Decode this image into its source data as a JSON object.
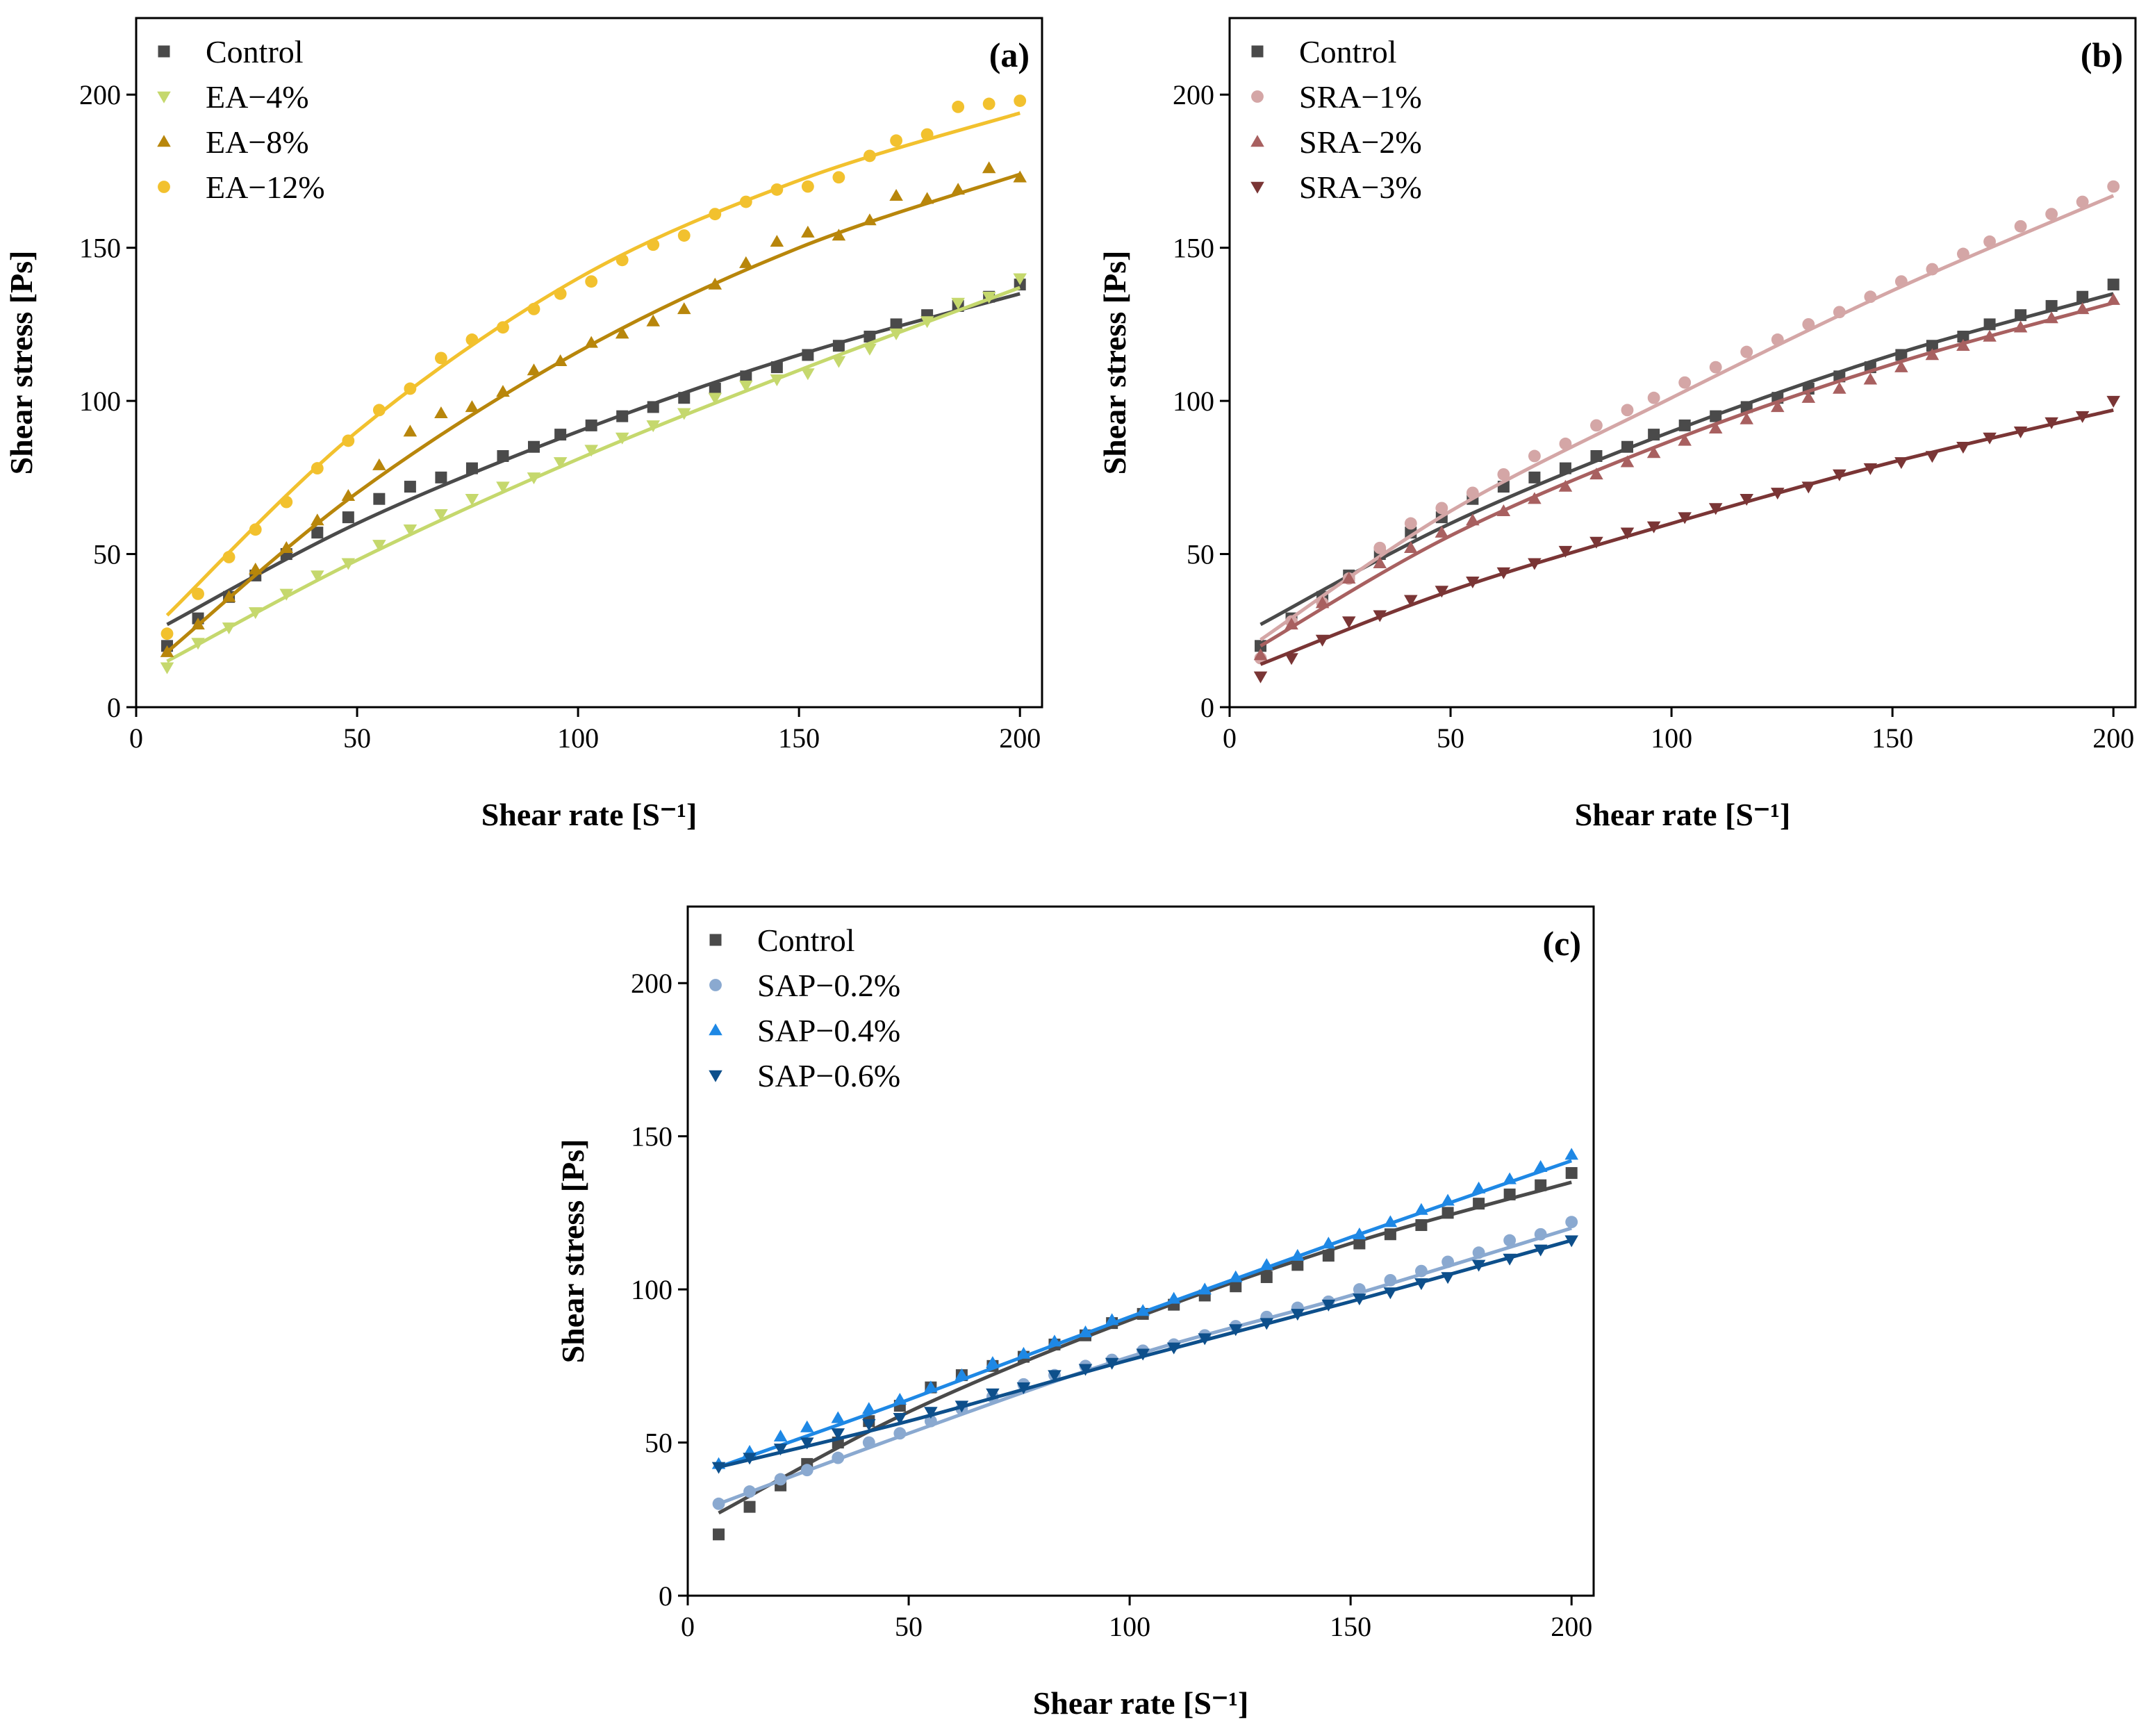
{
  "chart_data": [
    {
      "type": "scatter",
      "panel_label": "(a)",
      "xlabel": "Shear rate [S⁻¹]",
      "ylabel": "Shear stress [Ps]",
      "xlim": [
        0,
        205
      ],
      "ylim": [
        0,
        225
      ],
      "xticks": [
        "0",
        "50",
        "100",
        "150",
        "200"
      ],
      "yticks": [
        "0",
        "50",
        "100",
        "150",
        "200"
      ],
      "legend_position": "top-left",
      "x": [
        7,
        14,
        21,
        27,
        34,
        41,
        48,
        55,
        62,
        69,
        76,
        83,
        90,
        96,
        103,
        110,
        117,
        124,
        131,
        138,
        145,
        152,
        159,
        166,
        172,
        179,
        186,
        193,
        200
      ],
      "series": [
        {
          "name": "Control",
          "marker": "square",
          "color": "#4a4a4a",
          "values": [
            20,
            29,
            36,
            43,
            50,
            57,
            62,
            68,
            72,
            75,
            78,
            82,
            85,
            89,
            92,
            95,
            98,
            101,
            104,
            108,
            111,
            115,
            118,
            121,
            125,
            128,
            131,
            134,
            138
          ],
          "fit": [
            [
              7,
              27
            ],
            [
              50,
              60
            ],
            [
              100,
              90
            ],
            [
              150,
              115
            ],
            [
              200,
              135
            ]
          ]
        },
        {
          "name": "EA−4%",
          "marker": "triangle-down",
          "color": "#c5d86d",
          "values": [
            13,
            21,
            26,
            31,
            37,
            43,
            47,
            53,
            58,
            63,
            68,
            72,
            75,
            80,
            84,
            88,
            92,
            96,
            101,
            105,
            107,
            109,
            113,
            117,
            122,
            126,
            132,
            134,
            140
          ],
          "fit": [
            [
              7,
              15
            ],
            [
              50,
              48
            ],
            [
              100,
              81
            ],
            [
              150,
              110
            ],
            [
              200,
              137
            ]
          ]
        },
        {
          "name": "EA−8%",
          "marker": "triangle-up",
          "color": "#b8860b",
          "values": [
            18,
            27,
            36,
            45,
            52,
            61,
            69,
            79,
            90,
            96,
            98,
            103,
            110,
            113,
            119,
            122,
            126,
            130,
            138,
            145,
            152,
            155,
            154,
            159,
            167,
            166,
            169,
            176,
            173
          ],
          "fit": [
            [
              7,
              18
            ],
            [
              50,
              70
            ],
            [
              100,
              116
            ],
            [
              150,
              150
            ],
            [
              200,
              174
            ]
          ]
        },
        {
          "name": "EA−12%",
          "marker": "circle",
          "color": "#f2c12e",
          "values": [
            24,
            37,
            49,
            58,
            67,
            78,
            87,
            97,
            104,
            114,
            120,
            124,
            130,
            135,
            139,
            146,
            151,
            154,
            161,
            165,
            169,
            170,
            173,
            180,
            185,
            187,
            196,
            197,
            198
          ],
          "fit": [
            [
              7,
              30
            ],
            [
              50,
              90
            ],
            [
              100,
              140
            ],
            [
              150,
              172
            ],
            [
              200,
              194
            ]
          ]
        }
      ]
    },
    {
      "type": "scatter",
      "panel_label": "(b)",
      "xlabel": "Shear rate [S⁻¹]",
      "ylabel": "Shear stress [Ps]",
      "xlim": [
        0,
        205
      ],
      "ylim": [
        0,
        225
      ],
      "xticks": [
        "0",
        "50",
        "100",
        "150",
        "200"
      ],
      "yticks": [
        "0",
        "50",
        "100",
        "150",
        "200"
      ],
      "legend_position": "top-left",
      "x": [
        7,
        14,
        21,
        27,
        34,
        41,
        48,
        55,
        62,
        69,
        76,
        83,
        90,
        96,
        103,
        110,
        117,
        124,
        131,
        138,
        145,
        152,
        159,
        166,
        172,
        179,
        186,
        193,
        200
      ],
      "series": [
        {
          "name": "Control",
          "marker": "square",
          "color": "#4a4a4a",
          "values": [
            20,
            29,
            36,
            43,
            50,
            57,
            62,
            68,
            72,
            75,
            78,
            82,
            85,
            89,
            92,
            95,
            98,
            101,
            104,
            108,
            111,
            115,
            118,
            121,
            125,
            128,
            131,
            134,
            138
          ],
          "fit": [
            [
              7,
              27
            ],
            [
              50,
              60
            ],
            [
              100,
              90
            ],
            [
              150,
              115
            ],
            [
              200,
              135
            ]
          ]
        },
        {
          "name": "SRA−1%",
          "marker": "circle",
          "color": "#d4a6a6",
          "values": [
            16,
            28,
            34,
            42,
            52,
            60,
            65,
            70,
            76,
            82,
            86,
            92,
            97,
            101,
            106,
            111,
            116,
            120,
            125,
            129,
            134,
            139,
            143,
            148,
            152,
            157,
            161,
            165,
            170
          ],
          "fit": [
            [
              7,
              22
            ],
            [
              50,
              64
            ],
            [
              100,
              101
            ],
            [
              150,
              136
            ],
            [
              200,
              167
            ]
          ]
        },
        {
          "name": "SRA−2%",
          "marker": "triangle-up",
          "color": "#a86060",
          "values": [
            17,
            27,
            34,
            42,
            47,
            52,
            57,
            61,
            64,
            68,
            72,
            76,
            80,
            83,
            87,
            91,
            94,
            98,
            101,
            104,
            107,
            111,
            115,
            118,
            121,
            124,
            127,
            130,
            133
          ],
          "fit": [
            [
              7,
              20
            ],
            [
              50,
              56
            ],
            [
              100,
              87
            ],
            [
              150,
              112
            ],
            [
              200,
              132
            ]
          ]
        },
        {
          "name": "SRA−3%",
          "marker": "triangle-down",
          "color": "#7a3535",
          "values": [
            10,
            16,
            22,
            28,
            30,
            35,
            38,
            41,
            44,
            47,
            51,
            54,
            57,
            59,
            62,
            65,
            68,
            70,
            72,
            76,
            78,
            80,
            82,
            85,
            88,
            90,
            93,
            95,
            100
          ],
          "fit": [
            [
              7,
              14
            ],
            [
              50,
              38
            ],
            [
              100,
              60
            ],
            [
              150,
              80
            ],
            [
              200,
              97
            ]
          ]
        }
      ]
    },
    {
      "type": "scatter",
      "panel_label": "(c)",
      "xlabel": "Shear rate [S⁻¹]",
      "ylabel": "Shear stress [Ps]",
      "xlim": [
        0,
        205
      ],
      "ylim": [
        0,
        225
      ],
      "xticks": [
        "0",
        "50",
        "100",
        "150",
        "200"
      ],
      "yticks": [
        "0",
        "50",
        "100",
        "150",
        "200"
      ],
      "legend_position": "top-left",
      "x": [
        7,
        14,
        21,
        27,
        34,
        41,
        48,
        55,
        62,
        69,
        76,
        83,
        90,
        96,
        103,
        110,
        117,
        124,
        131,
        138,
        145,
        152,
        159,
        166,
        172,
        179,
        186,
        193,
        200
      ],
      "series": [
        {
          "name": "Control",
          "marker": "square",
          "color": "#4a4a4a",
          "values": [
            20,
            29,
            36,
            43,
            50,
            57,
            62,
            68,
            72,
            75,
            78,
            82,
            85,
            89,
            92,
            95,
            98,
            101,
            104,
            108,
            111,
            115,
            118,
            121,
            125,
            128,
            131,
            134,
            138
          ],
          "fit": [
            [
              7,
              27
            ],
            [
              50,
              60
            ],
            [
              100,
              90
            ],
            [
              150,
              115
            ],
            [
              200,
              135
            ]
          ]
        },
        {
          "name": "SAP−0.2%",
          "marker": "circle",
          "color": "#8aa9d0",
          "values": [
            30,
            34,
            38,
            41,
            45,
            50,
            53,
            57,
            61,
            65,
            69,
            72,
            75,
            77,
            80,
            82,
            85,
            88,
            91,
            94,
            96,
            100,
            103,
            106,
            109,
            112,
            116,
            118,
            122
          ],
          "fit": [
            [
              7,
              30
            ],
            [
              50,
              53
            ],
            [
              100,
              78
            ],
            [
              150,
              98
            ],
            [
              200,
              120
            ]
          ]
        },
        {
          "name": "SAP−0.4%",
          "marker": "triangle-up",
          "color": "#1e88e5",
          "values": [
            43,
            47,
            52,
            55,
            58,
            61,
            64,
            68,
            72,
            76,
            79,
            83,
            86,
            90,
            93,
            97,
            100,
            104,
            108,
            111,
            115,
            118,
            122,
            126,
            129,
            133,
            136,
            140,
            144
          ],
          "fit": [
            [
              7,
              42
            ],
            [
              50,
              64
            ],
            [
              100,
              91
            ],
            [
              150,
              117
            ],
            [
              200,
              142
            ]
          ]
        },
        {
          "name": "SAP−0.6%",
          "marker": "triangle-down",
          "color": "#0d4f8b",
          "values": [
            42,
            45,
            48,
            50,
            53,
            56,
            58,
            60,
            62,
            66,
            68,
            72,
            74,
            76,
            79,
            81,
            84,
            87,
            89,
            92,
            95,
            97,
            99,
            102,
            104,
            108,
            110,
            113,
            116
          ],
          "fit": [
            [
              7,
              42
            ],
            [
              50,
              57
            ],
            [
              100,
              77
            ],
            [
              150,
              96
            ],
            [
              200,
              116
            ]
          ]
        }
      ]
    }
  ]
}
